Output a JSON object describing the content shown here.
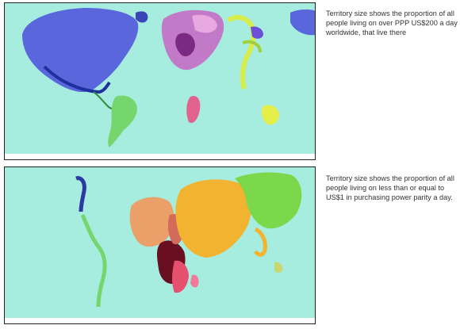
{
  "panels": [
    {
      "caption": "Territory size shows the proportion of all people living on over PPP US$200 a day worldwide, that live there",
      "colors": {
        "ocean": "#a6ecdf",
        "north_america": "#5a66dc",
        "europe": "#c27ac8",
        "south_america": "#76d66e",
        "africa": "#e1628c",
        "asia": "#d8ec4a",
        "japan": "#6a4fd8"
      }
    },
    {
      "caption": "Territory size shows the proportion of all people living on less than or equal to US$1 in purchasing power parity a day.",
      "colors": {
        "ocean": "#a6ecdf",
        "north_america": "#2a3aa0",
        "south_america": "#76d66e",
        "north_africa": "#eb9f69",
        "central_africa": "#6a0f22",
        "southern_africa": "#e4506e",
        "south_asia": "#f1b330",
        "east_asia": "#7ad84a"
      }
    }
  ]
}
